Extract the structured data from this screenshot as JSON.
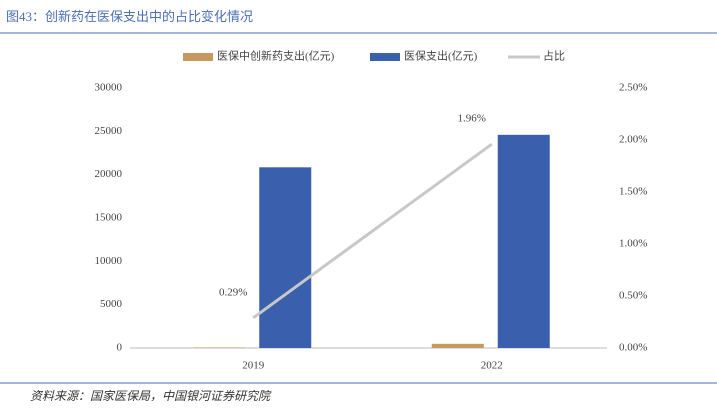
{
  "chart_data": {
    "type": "bar-line",
    "title": "图43：创新药在医保支出中的占比变化情况",
    "categories": [
      "2019",
      "2022"
    ],
    "series": [
      {
        "name": "医保中创新药支出(亿元)",
        "color": "#c49a5e",
        "values": [
          60,
          482
        ]
      },
      {
        "name": "医保支出(亿元)",
        "color": "#3a60ad",
        "values": [
          20850,
          24600
        ]
      },
      {
        "name": "占比",
        "color": "#c8c8c8",
        "axis": "y2",
        "values": [
          0.29,
          1.96
        ],
        "value_labels": [
          "0.29%",
          "1.96%"
        ]
      }
    ],
    "ylim": [
      0,
      30000
    ],
    "yticks": [
      0,
      5000,
      10000,
      15000,
      20000,
      25000,
      30000
    ],
    "y2lim": [
      0,
      2.5
    ],
    "y2ticks": [
      {
        "value": 0,
        "label": "0.00%"
      },
      {
        "value": 0.5,
        "label": "0.50%"
      },
      {
        "value": 1,
        "label": "1.00%"
      },
      {
        "value": 1.5,
        "label": "1.50%"
      },
      {
        "value": 2,
        "label": "2.00%"
      },
      {
        "value": 2.5,
        "label": "2.50%"
      }
    ],
    "source": "资料来源：国家医保局，中国银河证券研究院"
  }
}
